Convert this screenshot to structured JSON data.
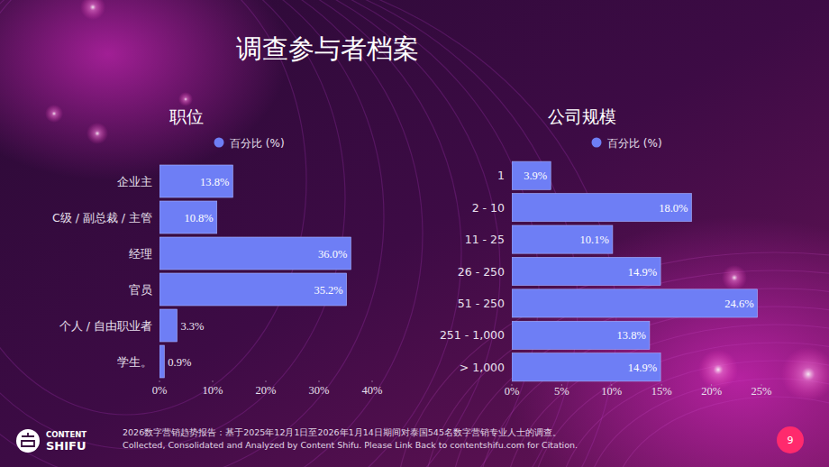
{
  "page": {
    "title": "调查参与者档案",
    "footer": [
      "2026数字营销趋势报告：基于2025年12月1日至2026年1月14日期间对泰国545名数字营销专业人士的调查。",
      "Collected, Consolidated and Analyzed by Content Shifu. Please Link Back to contentshifu.com for Citation."
    ],
    "logo": [
      "CONTENT",
      "SHIFU"
    ],
    "page_number": "9"
  },
  "chart_data": [
    {
      "type": "bar",
      "title": "职位",
      "orientation": "horizontal",
      "data_labels": true,
      "grid": false,
      "legend": "top",
      "categories": [
        "企业主",
        "C级 / 副总裁 / 主管",
        "经理",
        "官员",
        "个人 / 自由职业者",
        "学生。"
      ],
      "series": [
        {
          "name": "百分比 (%)",
          "color": "#6e7ef5",
          "values": [
            13.8,
            10.8,
            36.0,
            35.2,
            3.3,
            0.9
          ],
          "value_labels": [
            "13.8%",
            "10.8%",
            "36.0%",
            "35.2%",
            "3.3%",
            "0.9%"
          ]
        }
      ],
      "xlim": [
        0,
        40
      ],
      "xticks": [
        {
          "value": 0,
          "label": "0%"
        },
        {
          "value": 10,
          "label": "10%"
        },
        {
          "value": 20,
          "label": "20%"
        },
        {
          "value": 30,
          "label": "30%"
        },
        {
          "value": 40,
          "label": "40%"
        }
      ]
    },
    {
      "type": "bar",
      "title": "公司规模",
      "orientation": "horizontal",
      "data_labels": true,
      "grid": false,
      "legend": "top",
      "categories": [
        "1",
        "2 - 10",
        "11 - 25",
        "26 - 250",
        "51 - 250",
        "251 - 1,000",
        "> 1,000"
      ],
      "series": [
        {
          "name": "百分比 (%)",
          "color": "#6e7ef5",
          "values": [
            3.9,
            18.0,
            10.1,
            14.9,
            24.6,
            13.8,
            14.9
          ],
          "value_labels": [
            "3.9%",
            "18.0%",
            "10.1%",
            "14.9%",
            "24.6%",
            "13.8%",
            "14.9%"
          ]
        }
      ],
      "xlim": [
        0,
        25
      ],
      "xticks": [
        {
          "value": 0,
          "label": "0%"
        },
        {
          "value": 5,
          "label": "5%"
        },
        {
          "value": 10,
          "label": "10%"
        },
        {
          "value": 15,
          "label": "15%"
        },
        {
          "value": 20,
          "label": "20%"
        },
        {
          "value": 25,
          "label": "25%"
        }
      ]
    }
  ]
}
